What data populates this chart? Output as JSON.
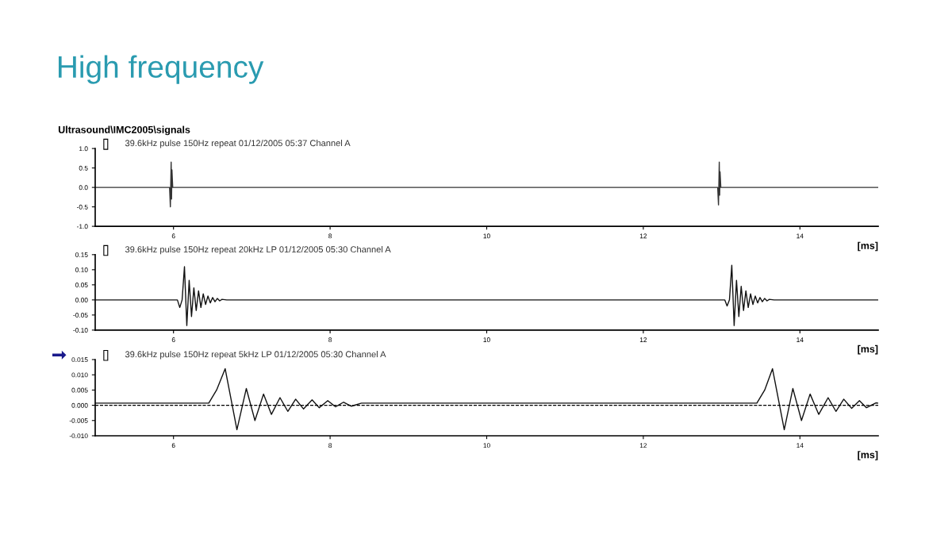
{
  "chart_data": [
    {
      "type": "line",
      "title": "39.6kHz pulse 150Hz repeat 01/12/2005 05:37 Channel A",
      "xlabel": "[ms]",
      "annotations": [
        "High frequency",
        "Ultrasound\\IMC2005\\signals"
      ],
      "series": [
        {
          "color": "#333333",
          "x": [
            5.0,
            5.95,
            5.96,
            5.965,
            5.97,
            5.975,
            5.98,
            5.99,
            12.95,
            12.96,
            12.965,
            12.97,
            12.975,
            12.98,
            12.99,
            15.0
          ],
          "values": [
            0,
            0,
            -0.5,
            0.1,
            0.65,
            -0.3,
            0.45,
            0,
            0,
            -0.45,
            0.1,
            0.65,
            -0.2,
            0.4,
            0,
            0
          ]
        }
      ],
      "xlim": [
        5,
        15
      ],
      "xticks": [
        6,
        8,
        10,
        12,
        14
      ],
      "ylim": [
        -1.0,
        1.0
      ],
      "yticks": [
        {
          "value": -1.0,
          "label": "-1.0"
        },
        {
          "value": -0.5,
          "label": "-0.5"
        },
        {
          "value": 0,
          "label": "0.0"
        },
        {
          "value": 0.5,
          "label": "0.5"
        },
        {
          "value": 1.0,
          "label": "1.0"
        }
      ],
      "grid": false,
      "legend": false,
      "line_style": "solid"
    },
    {
      "type": "line",
      "title": "39.6kHz pulse 150Hz repeat 20kHz LP 01/12/2005 05:30 Channel A",
      "xlabel": "[ms]",
      "series": [
        {
          "color": "#111111",
          "x": [
            5.0,
            6.05,
            6.08,
            6.11,
            6.14,
            6.17,
            6.2,
            6.23,
            6.26,
            6.29,
            6.32,
            6.35,
            6.38,
            6.41,
            6.44,
            6.47,
            6.5,
            6.53,
            6.56,
            6.59,
            6.62,
            6.68,
            13.04,
            13.07,
            13.1,
            13.13,
            13.16,
            13.19,
            13.22,
            13.25,
            13.28,
            13.31,
            13.34,
            13.37,
            13.4,
            13.43,
            13.46,
            13.49,
            13.52,
            13.55,
            13.58,
            13.61,
            13.67,
            15.0
          ],
          "values": [
            0,
            0,
            -0.025,
            0,
            0.11,
            -0.085,
            0.065,
            -0.055,
            0.04,
            -0.035,
            0.03,
            -0.025,
            0.02,
            -0.015,
            0.013,
            -0.01,
            0.008,
            -0.006,
            0.005,
            -0.003,
            0.002,
            0,
            0,
            -0.02,
            0,
            0.115,
            -0.085,
            0.065,
            -0.055,
            0.045,
            -0.035,
            0.03,
            -0.025,
            0.02,
            -0.015,
            0.013,
            -0.01,
            0.008,
            -0.006,
            0.005,
            -0.003,
            0.002,
            0,
            0
          ]
        }
      ],
      "xlim": [
        5,
        15
      ],
      "xticks": [
        6,
        8,
        10,
        12,
        14
      ],
      "ylim": [
        -0.1,
        0.15
      ],
      "yticks": [
        {
          "value": -0.1,
          "label": "-0.10"
        },
        {
          "value": -0.05,
          "label": "-0.05"
        },
        {
          "value": 0,
          "label": "0.00"
        },
        {
          "value": 0.05,
          "label": "0.05"
        },
        {
          "value": 0.1,
          "label": "0.10"
        },
        {
          "value": 0.15,
          "label": "0.15"
        }
      ],
      "grid": false,
      "legend": false,
      "line_style": "solid"
    },
    {
      "type": "line",
      "title": "39.6kHz pulse 150Hz repeat 5kHz LP 01/12/2005 05:30 Channel A",
      "xlabel": "[ms]",
      "series": [
        {
          "color": "#111111",
          "x": [
            5.0,
            6.45,
            6.55,
            6.66,
            6.81,
            6.93,
            7.04,
            7.15,
            7.25,
            7.36,
            7.46,
            7.56,
            7.66,
            7.77,
            7.86,
            7.97,
            8.07,
            8.17,
            8.27,
            8.4,
            13.45,
            13.55,
            13.65,
            13.8,
            13.91,
            14.02,
            14.13,
            14.24,
            14.36,
            14.46,
            14.56,
            14.66,
            14.76,
            14.85,
            14.97,
            15.0
          ],
          "values": [
            0.0007,
            0.0007,
            0.005,
            0.012,
            -0.008,
            0.0055,
            -0.005,
            0.0037,
            -0.003,
            0.0025,
            -0.002,
            0.002,
            -0.0012,
            0.0018,
            -0.0008,
            0.0015,
            -0.0005,
            0.001,
            -0.0003,
            0.0007,
            0.0007,
            0.005,
            0.012,
            -0.008,
            0.0055,
            -0.005,
            0.0037,
            -0.003,
            0.0025,
            -0.002,
            0.002,
            -0.001,
            0.0015,
            -0.0008,
            0.0008,
            0.0007
          ]
        }
      ],
      "ref_lines": [
        {
          "axis": "y",
          "value": 0,
          "color": "#000000",
          "line_style": "dashed"
        }
      ],
      "xlim": [
        5,
        15
      ],
      "xticks": [
        6,
        8,
        10,
        12,
        14
      ],
      "ylim": [
        -0.01,
        0.015
      ],
      "yticks": [
        {
          "value": -0.01,
          "label": "-0.010"
        },
        {
          "value": -0.005,
          "label": "-0.005"
        },
        {
          "value": 0,
          "label": "0.000"
        },
        {
          "value": 0.005,
          "label": "0.005"
        },
        {
          "value": 0.01,
          "label": "0.010"
        },
        {
          "value": 0.015,
          "label": "0.015"
        }
      ],
      "grid": false,
      "legend": false,
      "line_style": "solid"
    }
  ]
}
